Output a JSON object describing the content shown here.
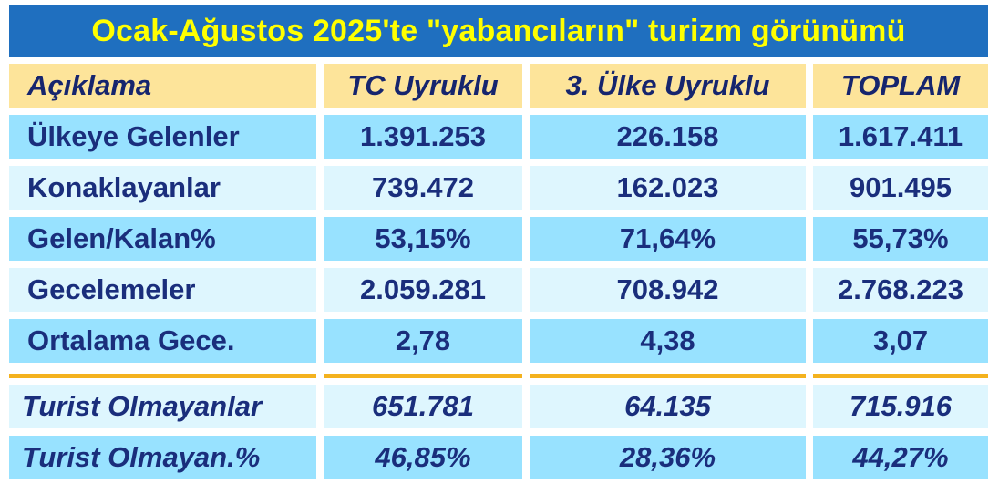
{
  "title": "Ocak-Ağustos 2025'te \"yabancıların\" turizm görünümü",
  "headers": [
    "Açıklama",
    "TC Uyruklu",
    "3. Ülke Uyruklu",
    "TOPLAM"
  ],
  "rows": [
    {
      "label": "Ülkeye Gelenler",
      "values": [
        "1.391.253",
        "226.158",
        "1.617.411"
      ]
    },
    {
      "label": "Konaklayanlar",
      "values": [
        "739.472",
        "162.023",
        "901.495"
      ]
    },
    {
      "label": "Gelen/Kalan%",
      "values": [
        "53,15%",
        "71,64%",
        "55,73%"
      ]
    },
    {
      "label": "Gecelemeler",
      "values": [
        "2.059.281",
        "708.942",
        "2.768.223"
      ]
    },
    {
      "label": "Ortalama Gece.",
      "values": [
        "2,78",
        "4,38",
        "3,07"
      ]
    }
  ],
  "non_tourist_rows": [
    {
      "label": "Turist Olmayanlar",
      "values": [
        "651.781",
        "64.135",
        "715.916"
      ]
    },
    {
      "label": "Turist Olmayan.%",
      "values": [
        "46,85%",
        "28,36%",
        "44,27%"
      ]
    }
  ],
  "colors": {
    "title_bg": "#1f6fbf",
    "title_text": "#ffff00",
    "header_bg": "#fde49a",
    "row_dark": "#98e2ff",
    "row_light": "#def6fe",
    "text": "#1a2e7c",
    "separator": "#f4b21e"
  }
}
